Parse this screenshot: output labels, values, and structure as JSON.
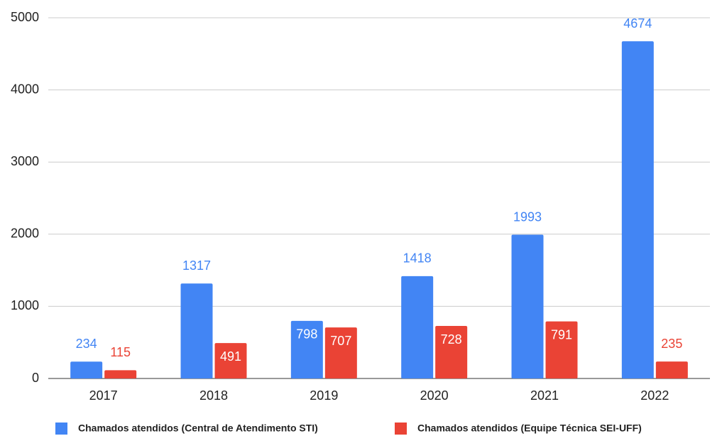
{
  "chart_data": {
    "type": "bar",
    "categories": [
      "2017",
      "2018",
      "2019",
      "2020",
      "2021",
      "2022"
    ],
    "series": [
      {
        "name": "Chamados atendidos (Central de Atendimento STI)",
        "color": "#4285f4",
        "values": [
          234,
          1317,
          798,
          1418,
          1993,
          4674
        ],
        "label_positions": [
          "outside",
          "outside",
          "inside",
          "outside",
          "outside",
          "outside"
        ]
      },
      {
        "name": "Chamados atendidos (Equipe Técnica SEI-UFF)",
        "color": "#ea4335",
        "values": [
          115,
          491,
          707,
          728,
          791,
          235
        ],
        "label_positions": [
          "outside",
          "inside",
          "inside",
          "inside",
          "inside",
          "outside"
        ]
      }
    ],
    "ylim": [
      0,
      5000
    ],
    "yticks": [
      0,
      1000,
      2000,
      3000,
      4000,
      5000
    ],
    "grid": true,
    "legend": "bottom"
  }
}
